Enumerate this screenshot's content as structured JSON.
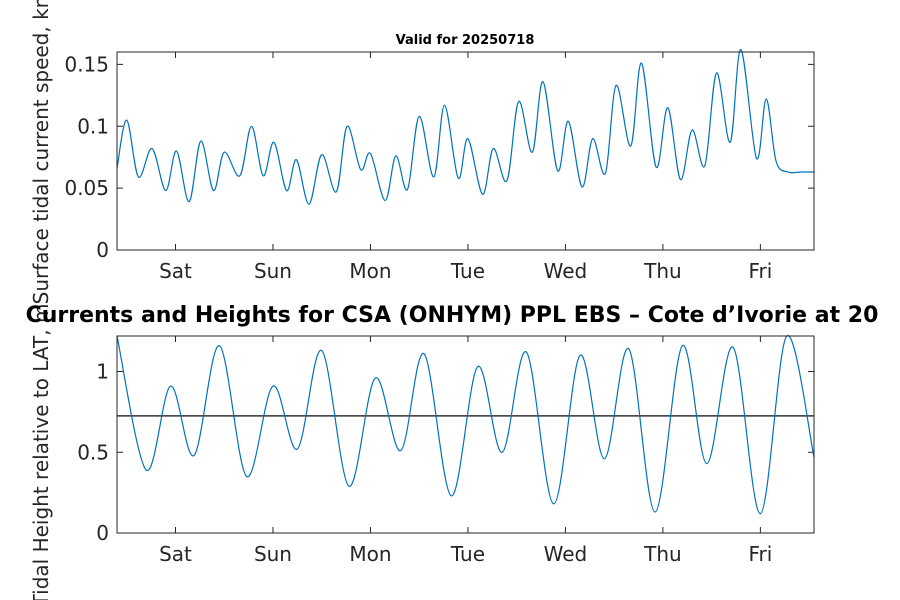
{
  "chart_data": [
    {
      "type": "line",
      "title": "Valid for 20250718",
      "ylabel": "Surface tidal current speed, kn",
      "xlim": [
        0,
        7.15
      ],
      "ylim": [
        0,
        0.16
      ],
      "yticks": [
        0,
        0.05,
        0.1,
        0.15
      ],
      "ytick_labels": [
        "0",
        "0.05",
        "0.1",
        "0.15"
      ],
      "xticks": [
        0.6,
        1.6,
        2.6,
        3.6,
        4.6,
        5.6,
        6.6
      ],
      "xtick_labels": [
        "Sat",
        "Sun",
        "Mon",
        "Tue",
        "Wed",
        "Thu",
        "Fri"
      ],
      "color": "#0072BD",
      "grid": false,
      "series": [
        {
          "x": [
            0,
            0.1,
            0.22,
            0.36,
            0.5,
            0.61,
            0.74,
            0.86,
            0.99,
            1.1,
            1.26,
            1.38,
            1.5,
            1.61,
            1.74,
            1.84,
            1.97,
            2.1,
            2.25,
            2.36,
            2.5,
            2.6,
            2.75,
            2.86,
            2.98,
            3.1,
            3.25,
            3.36,
            3.5,
            3.6,
            3.75,
            3.86,
            4.0,
            4.12,
            4.26,
            4.37,
            4.52,
            4.63,
            4.77,
            4.88,
            5.01,
            5.12,
            5.27,
            5.38,
            5.53,
            5.65,
            5.78,
            5.9,
            6.03,
            6.15,
            6.29,
            6.4,
            6.56,
            6.66,
            6.76,
            6.88,
            7.01,
            7.15
          ],
          "y": [
            0.066,
            0.105,
            0.059,
            0.082,
            0.048,
            0.08,
            0.039,
            0.088,
            0.048,
            0.079,
            0.06,
            0.1,
            0.06,
            0.087,
            0.048,
            0.073,
            0.037,
            0.077,
            0.047,
            0.1,
            0.065,
            0.078,
            0.04,
            0.076,
            0.049,
            0.108,
            0.059,
            0.117,
            0.058,
            0.09,
            0.045,
            0.082,
            0.056,
            0.12,
            0.079,
            0.136,
            0.064,
            0.104,
            0.051,
            0.09,
            0.062,
            0.133,
            0.084,
            0.151,
            0.067,
            0.115,
            0.057,
            0.097,
            0.068,
            0.143,
            0.087,
            0.162,
            0.074,
            0.122,
            0.072,
            0.063,
            0.063,
            0.063
          ]
        }
      ]
    },
    {
      "type": "line",
      "title": "Currents and Heights for CSA (ONHYM) PPL EBS  – Cote d’Ivorie at 20",
      "ylabel": "Tidal Height relative to LAT, m",
      "xlim": [
        0,
        7.15
      ],
      "ylim": [
        0,
        1.22
      ],
      "yticks": [
        0,
        0.5,
        1
      ],
      "ytick_labels": [
        "0",
        "0.5",
        "1"
      ],
      "xticks": [
        0.6,
        1.6,
        2.6,
        3.6,
        4.6,
        5.6,
        6.6
      ],
      "xtick_labels": [
        "Sat",
        "Sun",
        "Mon",
        "Tue",
        "Wed",
        "Thu",
        "Fri"
      ],
      "reference_line": 0.725,
      "color": "#0072BD",
      "grid": false,
      "series": [
        {
          "x": [
            0,
            0.3,
            0.55,
            0.79,
            1.05,
            1.33,
            1.6,
            1.85,
            2.1,
            2.38,
            2.65,
            2.91,
            3.15,
            3.43,
            3.7,
            3.95,
            4.2,
            4.48,
            4.75,
            5.0,
            5.25,
            5.52,
            5.8,
            6.05,
            6.32,
            6.6,
            6.87,
            7.15
          ],
          "y": [
            1.22,
            0.39,
            0.91,
            0.48,
            1.16,
            0.35,
            0.91,
            0.52,
            1.13,
            0.29,
            0.96,
            0.51,
            1.11,
            0.23,
            1.03,
            0.5,
            1.12,
            0.18,
            1.1,
            0.46,
            1.14,
            0.13,
            1.16,
            0.43,
            1.15,
            0.12,
            1.22,
            0.47
          ]
        }
      ]
    }
  ]
}
